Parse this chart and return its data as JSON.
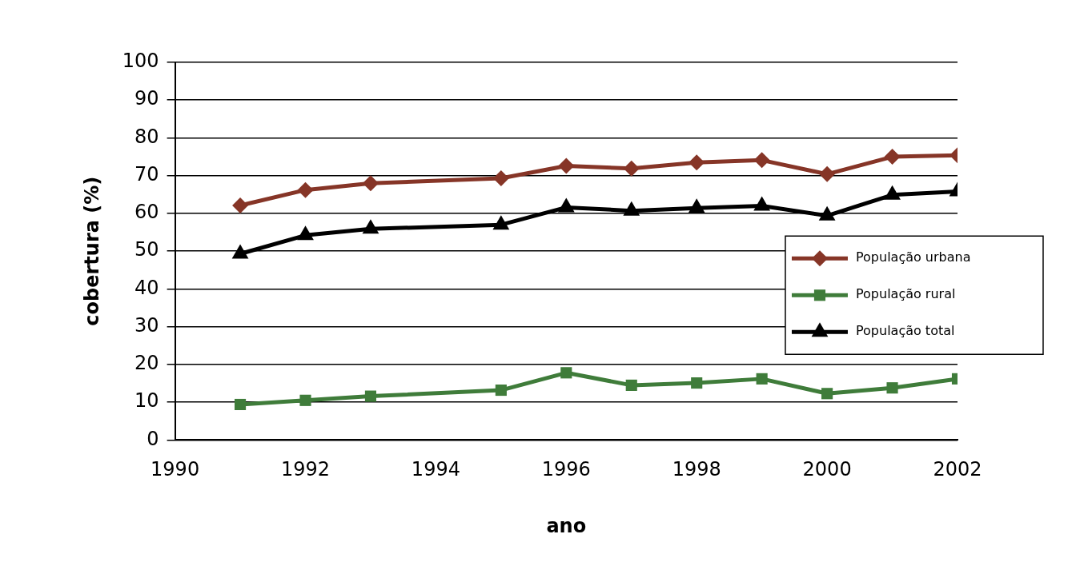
{
  "chart_data": {
    "type": "line",
    "xlabel": "ano",
    "ylabel": "cobertura (%)",
    "x": [
      1991,
      1992,
      1993,
      1995,
      1996,
      1997,
      1998,
      1999,
      2000,
      2001,
      2002
    ],
    "series": [
      {
        "name": "População urbana",
        "color": "#863527",
        "marker": "diamond",
        "values": [
          62.1,
          66.2,
          68,
          69.3,
          72.6,
          71.9,
          73.5,
          74.1,
          70.4,
          75,
          75.4
        ]
      },
      {
        "name": "População rural",
        "color": "#3f7c3a",
        "marker": "square",
        "values": [
          9.4,
          10.5,
          11.6,
          13.2,
          17.8,
          14.5,
          15.1,
          16.2,
          12.3,
          13.8,
          16.2
        ]
      },
      {
        "name": "População total",
        "color": "#000000",
        "marker": "triangle",
        "values": [
          49.3,
          54.2,
          55.9,
          57,
          61.6,
          60.7,
          61.4,
          62,
          59.4,
          64.9,
          65.8
        ]
      }
    ],
    "xlim": [
      1990,
      2002
    ],
    "xticks": [
      1990,
      1992,
      1994,
      1996,
      1998,
      2000,
      2002
    ],
    "ylim": [
      0,
      100
    ],
    "yticks": [
      0,
      10,
      20,
      30,
      40,
      50,
      60,
      70,
      80,
      90,
      100
    ],
    "grid": "y",
    "legend": "right",
    "line_style": "solid"
  }
}
